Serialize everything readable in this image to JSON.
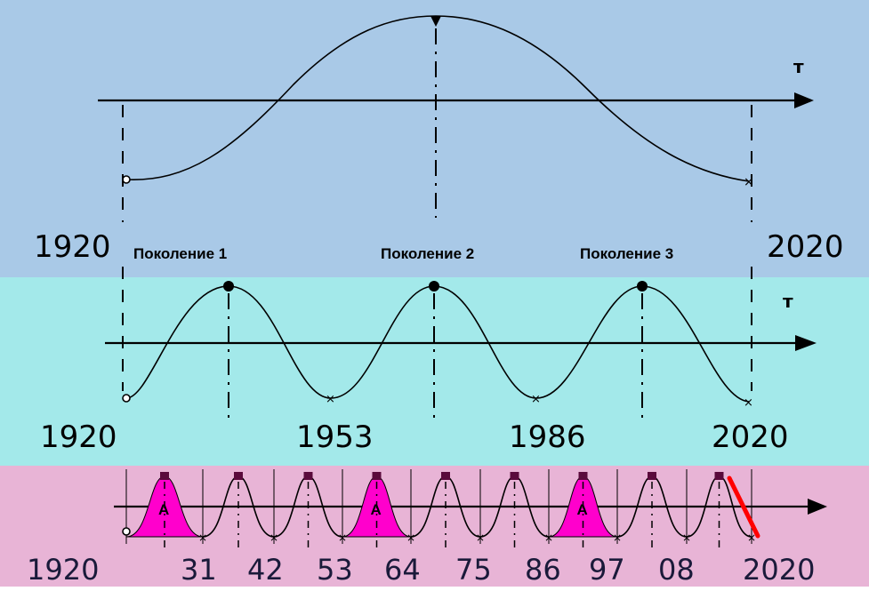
{
  "panels": {
    "top": {
      "axis_label": "т",
      "year_start": "1920",
      "year_end": "2020"
    },
    "middle": {
      "axis_label": "т",
      "year_start": "1920",
      "generations": [
        "Поколение 1",
        "Поколение 2",
        "Поколение 3"
      ],
      "ticks": [
        "1953",
        "1986"
      ],
      "year_end": "2020"
    },
    "bottom": {
      "ticks": [
        "1920",
        "31",
        "42",
        "53",
        "64",
        "75",
        "86",
        "97",
        "08",
        "2020"
      ],
      "peak_marker_label": "A"
    }
  },
  "colors": {
    "top_bg": "#a9c9e7",
    "middle_bg": "#a3e9ea",
    "bottom_bg": "#e8b4d6",
    "peak_fill": "#ff00cc",
    "end_mark": "#ff0000"
  }
}
